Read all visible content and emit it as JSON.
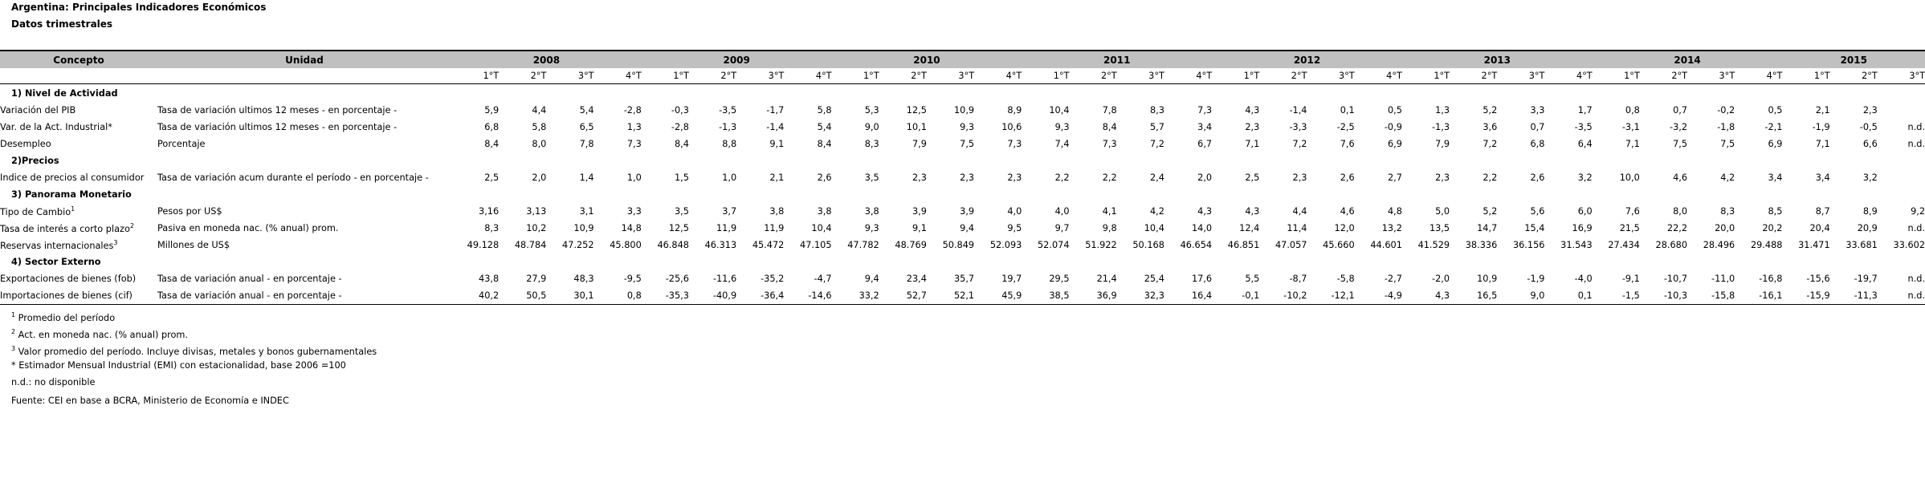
{
  "title": "Argentina: Principales Indicadores Económicos",
  "subtitle": "Datos trimestrales",
  "headers": {
    "concepto": "Concepto",
    "unidad": "Unidad"
  },
  "years": [
    "2008",
    "2009",
    "2010",
    "2011",
    "2012",
    "2013",
    "2014",
    "2015"
  ],
  "quarters": [
    "1°T",
    "2°T",
    "3°T",
    "4°T",
    "1°T",
    "2°T",
    "3°T",
    "4°T",
    "1°T",
    "2°T",
    "3°T",
    "4°T",
    "1°T",
    "2°T",
    "3°T",
    "4°T",
    "1°T",
    "2°T",
    "3°T",
    "4°T",
    "1°T",
    "2°T",
    "3°T",
    "4°T",
    "1°T",
    "2°T",
    "3°T",
    "4°T",
    "1°T",
    "2°T",
    "3°T"
  ],
  "sections": [
    {
      "title": "1) Nivel de Actividad",
      "rows": [
        {
          "concepto": "Variación del PIB",
          "sup": "",
          "unidad": "Tasa de variación ultimos 12 meses - en porcentaje -",
          "values": [
            "5,9",
            "4,4",
            "5,4",
            "-2,8",
            "-0,3",
            "-3,5",
            "-1,7",
            "5,8",
            "5,3",
            "12,5",
            "10,9",
            "8,9",
            "10,4",
            "7,8",
            "8,3",
            "7,3",
            "4,3",
            "-1,4",
            "0,1",
            "0,5",
            "1,3",
            "5,2",
            "3,3",
            "1,7",
            "0,8",
            "0,7",
            "-0,2",
            "0,5",
            "2,1",
            "2,3",
            ""
          ]
        },
        {
          "concepto": "Var. de la Act. Industrial*",
          "sup": "",
          "unidad": "Tasa de variación ultimos 12 meses - en porcentaje -",
          "values": [
            "6,8",
            "5,8",
            "6,5",
            "1,3",
            "-2,8",
            "-1,3",
            "-1,4",
            "5,4",
            "9,0",
            "10,1",
            "9,3",
            "10,6",
            "9,3",
            "8,4",
            "5,7",
            "3,4",
            "2,3",
            "-3,3",
            "-2,5",
            "-0,9",
            "-1,3",
            "3,6",
            "0,7",
            "-3,5",
            "-3,1",
            "-3,2",
            "-1,8",
            "-2,1",
            "-1,9",
            "-0,5",
            "n.d."
          ]
        },
        {
          "concepto": "Desempleo",
          "sup": "",
          "unidad": "Porcentaje",
          "values": [
            "8,4",
            "8,0",
            "7,8",
            "7,3",
            "8,4",
            "8,8",
            "9,1",
            "8,4",
            "8,3",
            "7,9",
            "7,5",
            "7,3",
            "7,4",
            "7,3",
            "7,2",
            "6,7",
            "7,1",
            "7,2",
            "7,6",
            "6,9",
            "7,9",
            "7,2",
            "6,8",
            "6,4",
            "7,1",
            "7,5",
            "7,5",
            "6,9",
            "7,1",
            "6,6",
            "n.d."
          ]
        }
      ]
    },
    {
      "title": "2)Precios",
      "rows": [
        {
          "concepto": "Indice de precios al consumidor",
          "sup": "",
          "unidad": "Tasa de variación acum durante el período - en porcentaje -",
          "values": [
            "2,5",
            "2,0",
            "1,4",
            "1,0",
            "1,5",
            "1,0",
            "2,1",
            "2,6",
            "3,5",
            "2,3",
            "2,3",
            "2,3",
            "2,2",
            "2,2",
            "2,4",
            "2,0",
            "2,5",
            "2,3",
            "2,6",
            "2,7",
            "2,3",
            "2,2",
            "2,6",
            "3,2",
            "10,0",
            "4,6",
            "4,2",
            "3,4",
            "3,4",
            "3,2",
            ""
          ]
        }
      ]
    },
    {
      "title": "3) Panorama Monetario",
      "rows": [
        {
          "concepto": "Tipo de Cambio",
          "sup": "1",
          "unidad": "Pesos por US$",
          "values": [
            "3,16",
            "3,13",
            "3,1",
            "3,3",
            "3,5",
            "3,7",
            "3,8",
            "3,8",
            "3,8",
            "3,9",
            "3,9",
            "4,0",
            "4,0",
            "4,1",
            "4,2",
            "4,3",
            "4,3",
            "4,4",
            "4,6",
            "4,8",
            "5,0",
            "5,2",
            "5,6",
            "6,0",
            "7,6",
            "8,0",
            "8,3",
            "8,5",
            "8,7",
            "8,9",
            "9,2"
          ]
        },
        {
          "concepto": "Tasa de interés a corto plazo",
          "sup": "2",
          "unidad": "Pasiva en moneda nac. (% anual) prom.",
          "values": [
            "8,3",
            "10,2",
            "10,9",
            "14,8",
            "12,5",
            "11,9",
            "11,9",
            "10,4",
            "9,3",
            "9,1",
            "9,4",
            "9,5",
            "9,7",
            "9,8",
            "10,4",
            "14,0",
            "12,4",
            "11,4",
            "12,0",
            "13,2",
            "13,5",
            "14,7",
            "15,4",
            "16,9",
            "21,5",
            "22,2",
            "20,0",
            "20,2",
            "20,4",
            "20,9",
            "n.d."
          ]
        },
        {
          "concepto": "Reservas internacionales",
          "sup": "3",
          "unidad": "Millones de US$",
          "values": [
            "49.128",
            "48.784",
            "47.252",
            "45.800",
            "46.848",
            "46.313",
            "45.472",
            "47.105",
            "47.782",
            "48.769",
            "50.849",
            "52.093",
            "52.074",
            "51.922",
            "50.168",
            "46.654",
            "46.851",
            "47.057",
            "45.660",
            "44.601",
            "41.529",
            "38.336",
            "36.156",
            "31.543",
            "27.434",
            "28.680",
            "28.496",
            "29.488",
            "31.471",
            "33.681",
            "33.602"
          ]
        }
      ]
    },
    {
      "title": "4) Sector Externo",
      "rows": [
        {
          "concepto": "Exportaciones de bienes (fob)",
          "sup": "",
          "unidad": "Tasa de variación anual - en porcentaje -",
          "values": [
            "43,8",
            "27,9",
            "48,3",
            "-9,5",
            "-25,6",
            "-11,6",
            "-35,2",
            "-4,7",
            "9,4",
            "23,4",
            "35,7",
            "19,7",
            "29,5",
            "21,4",
            "25,4",
            "17,6",
            "5,5",
            "-8,7",
            "-5,8",
            "-2,7",
            "-2,0",
            "10,9",
            "-1,9",
            "-4,0",
            "-9,1",
            "-10,7",
            "-11,0",
            "-16,8",
            "-15,6",
            "-19,7",
            "n.d."
          ]
        },
        {
          "concepto": "Importaciones de bienes (cif)",
          "sup": "",
          "unidad": "Tasa de variación anual - en porcentaje -",
          "values": [
            "40,2",
            "50,5",
            "30,1",
            "0,8",
            "-35,3",
            "-40,9",
            "-36,4",
            "-14,6",
            "33,2",
            "52,7",
            "52,1",
            "45,9",
            "38,5",
            "36,9",
            "32,3",
            "16,4",
            "-0,1",
            "-10,2",
            "-12,1",
            "-4,9",
            "4,3",
            "16,5",
            "9,0",
            "0,1",
            "-1,5",
            "-10,3",
            "-15,8",
            "-16,1",
            "-15,9",
            "-11,3",
            "n.d."
          ]
        }
      ]
    }
  ],
  "notes": [
    {
      "sup": "1",
      "text": " Promedio del período"
    },
    {
      "sup": "2",
      "text": " Act. en moneda nac. (% anual) prom."
    },
    {
      "sup": "3",
      "text": " Valor promedio del período. Incluye divisas, metales y bonos gubernamentales"
    },
    {
      "sup": "",
      "text": "* Estimador Mensual Industrial (EMI) con estacionalidad, base 2006 =100"
    },
    {
      "sup": "",
      "text": "n.d.: no disponible"
    }
  ],
  "source": "Fuente: CEI en base a BCRA, Ministerio de Economía e INDEC"
}
